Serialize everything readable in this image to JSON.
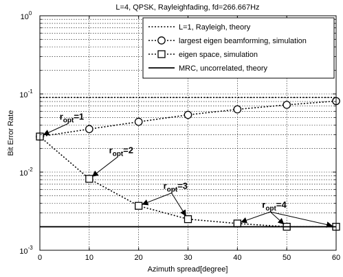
{
  "chart_data": {
    "type": "line",
    "title": "L=4, QPSK, Rayleighfading, fd=266.667Hz",
    "xlabel": "Azimuth spread[degree]",
    "ylabel": "Bit Error Rate",
    "xlim": [
      0,
      60
    ],
    "ylim": [
      0.001,
      1
    ],
    "yscale": "log",
    "grid": true,
    "legend_position": "top-right",
    "x_ticks": [
      0,
      10,
      20,
      30,
      40,
      50,
      60
    ],
    "x_tick_labels": [
      "0",
      "10",
      "20",
      "30",
      "40",
      "50",
      "60"
    ],
    "y_ticks": [
      0.001,
      0.01,
      0.1,
      1
    ],
    "y_tick_labels": [
      {
        "base": "10",
        "exp": "-3"
      },
      {
        "base": "10",
        "exp": "-2"
      },
      {
        "base": "10",
        "exp": "-1"
      },
      {
        "base": "10",
        "exp": "0"
      }
    ],
    "series": [
      {
        "name": "L=1, Rayleigh, theory",
        "style": "dotted",
        "marker": "none",
        "color": "#000000",
        "x": [
          0,
          60
        ],
        "y": [
          0.09,
          0.09
        ]
      },
      {
        "name": "largest eigen beamforming, simulation",
        "style": "dotted",
        "marker": "circle",
        "color": "#000000",
        "x": [
          0,
          10,
          20,
          30,
          40,
          50,
          60
        ],
        "y": [
          0.0285,
          0.0355,
          0.044,
          0.054,
          0.0635,
          0.0725,
          0.081
        ]
      },
      {
        "name": "eigen space, simulation",
        "style": "dotted",
        "marker": "square",
        "color": "#000000",
        "x": [
          0,
          10,
          20,
          30,
          40,
          50,
          60
        ],
        "y": [
          0.0285,
          0.0082,
          0.0037,
          0.0025,
          0.0022,
          0.002,
          0.002
        ]
      },
      {
        "name": "MRC, uncorrelated, theory",
        "style": "solid",
        "marker": "none",
        "color": "#000000",
        "x": [
          0,
          60
        ],
        "y": [
          0.002,
          0.002
        ]
      }
    ],
    "annotations": [
      {
        "text": "r",
        "sub": "opt",
        "suffix": "=1",
        "at": [
          4,
          0.047
        ],
        "arrow_to": [
          [
            0,
            0.0285
          ]
        ]
      },
      {
        "text": "r",
        "sub": "opt",
        "suffix": "=2",
        "at": [
          14,
          0.0175
        ],
        "arrow_to": [
          [
            10,
            0.0082
          ]
        ]
      },
      {
        "text": "r",
        "sub": "opt",
        "suffix": "=3",
        "at": [
          25,
          0.0061
        ],
        "arrow_to": [
          [
            20,
            0.0037
          ],
          [
            30,
            0.0025
          ]
        ]
      },
      {
        "text": "r",
        "sub": "opt",
        "suffix": "=4",
        "at": [
          45,
          0.0035
        ],
        "arrow_to": [
          [
            40,
            0.0022
          ],
          [
            50,
            0.002
          ],
          [
            60,
            0.002
          ]
        ]
      }
    ]
  }
}
